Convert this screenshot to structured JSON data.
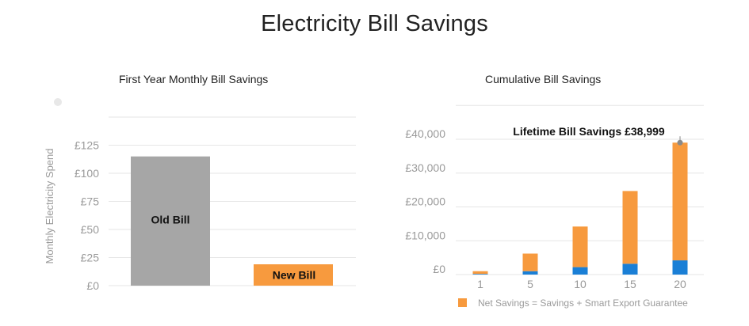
{
  "page": {
    "title": "Electricity Bill Savings"
  },
  "colors": {
    "old_bill": "#a6a6a6",
    "new_bill": "#f79a3e",
    "net_savings": "#f79a3e",
    "base": "#1a7fd6",
    "grid": "#e6e6e6"
  },
  "chart_data": [
    {
      "type": "bar",
      "title": "First Year Monthly Bill Savings",
      "ylabel": "Monthly Electricity Spend",
      "xlabel": "",
      "categories": [
        "Old Bill",
        "New Bill"
      ],
      "values": [
        115,
        19
      ],
      "bar_labels": [
        "Old Bill",
        "New Bill"
      ],
      "yticks": [
        "£0",
        "£25",
        "£50",
        "£75",
        "£100",
        "£125"
      ],
      "ytick_values": [
        0,
        25,
        50,
        75,
        100,
        125
      ],
      "ylim": [
        0,
        150
      ],
      "grid": true
    },
    {
      "type": "bar",
      "stacked": true,
      "title": "Cumulative Bill Savings",
      "categories": [
        "1",
        "5",
        "10",
        "15",
        "20"
      ],
      "series": [
        {
          "values": [
            200,
            1000,
            2200,
            3200,
            4200
          ]
        },
        {
          "name": "Net Savings = Savings + Smart Export Guarantee",
          "values": [
            800,
            5200,
            12000,
            21500,
            34800
          ]
        }
      ],
      "yticks": [
        "£0",
        "£10,000",
        "£20,000",
        "£30,000",
        "£40,000"
      ],
      "ytick_values": [
        0,
        10000,
        20000,
        30000,
        40000
      ],
      "ylim": [
        0,
        50000
      ],
      "annotation": {
        "text": "Lifetime Bill Savings £38,999",
        "category": "20",
        "value": 38999
      },
      "legend": "bottom",
      "grid": true
    }
  ]
}
